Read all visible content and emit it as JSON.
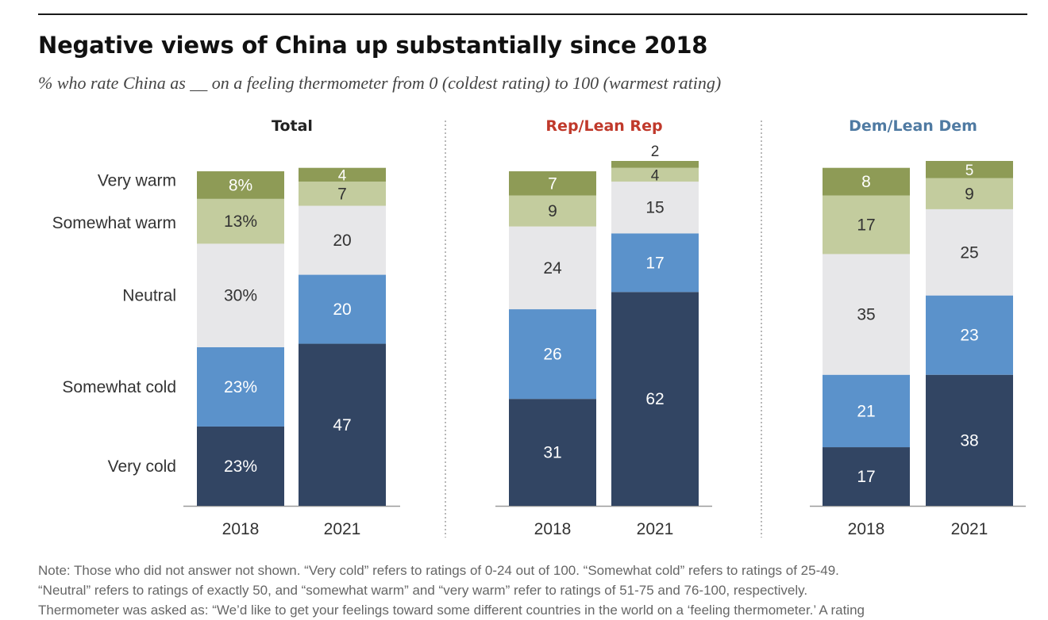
{
  "header": {
    "title": "Negative views of China up substantially since 2018",
    "subtitle": "% who rate China as __ on a feeling thermometer from 0 (coldest rating) to 100 (warmest rating)"
  },
  "note": {
    "line1": "Note: Those who did not answer not shown. “Very cold” refers to ratings of 0-24 out of 100. “Somewhat cold” refers to ratings of 25-49.",
    "line2": "“Neutral” refers to ratings of exactly 50, and “somewhat warm” and “very warm” refer to ratings of 51-75 and 76-100, respectively.",
    "line3": "Thermometer was asked as: “We’d like to get your feelings toward some different countries in the world on a ‘feeling thermometer.’ A rating"
  },
  "colors": {
    "very_cold": "#324563",
    "somewhat_cold": "#5b92cb",
    "neutral": "#e7e7e9",
    "somewhat_warm": "#c3cc9e",
    "very_warm": "#8e9b56",
    "rep_accent": "#c0392b",
    "dem_accent": "#4f7aa2"
  },
  "chart_data": {
    "type": "bar",
    "stacked": true,
    "orientation": "vertical",
    "categories": [
      "2018",
      "2021"
    ],
    "row_labels": [
      "Very warm",
      "Somewhat warm",
      "Neutral",
      "Somewhat cold",
      "Very cold"
    ],
    "groups": [
      {
        "title": "Total",
        "title_color": "#222222",
        "series": [
          {
            "key": "very_cold",
            "values": [
              23,
              47
            ],
            "labels": [
              "23%",
              "47"
            ]
          },
          {
            "key": "somewhat_cold",
            "values": [
              23,
              20
            ],
            "labels": [
              "23%",
              "20"
            ]
          },
          {
            "key": "neutral",
            "values": [
              30,
              20
            ],
            "labels": [
              "30%",
              "20"
            ]
          },
          {
            "key": "somewhat_warm",
            "values": [
              13,
              7
            ],
            "labels": [
              "13%",
              "7"
            ]
          },
          {
            "key": "very_warm",
            "values": [
              8,
              4
            ],
            "labels": [
              "8%",
              "4"
            ]
          }
        ]
      },
      {
        "title": "Rep/Lean Rep",
        "title_color": "#c0392b",
        "series": [
          {
            "key": "very_cold",
            "values": [
              31,
              62
            ],
            "labels": [
              "31",
              "62"
            ]
          },
          {
            "key": "somewhat_cold",
            "values": [
              26,
              17
            ],
            "labels": [
              "26",
              "17"
            ]
          },
          {
            "key": "neutral",
            "values": [
              24,
              15
            ],
            "labels": [
              "24",
              "15"
            ]
          },
          {
            "key": "somewhat_warm",
            "values": [
              9,
              4
            ],
            "labels": [
              "9",
              "4"
            ]
          },
          {
            "key": "very_warm",
            "values": [
              7,
              2
            ],
            "labels": [
              "7",
              "2"
            ]
          }
        ]
      },
      {
        "title": "Dem/Lean Dem",
        "title_color": "#4f7aa2",
        "series": [
          {
            "key": "very_cold",
            "values": [
              17,
              38
            ],
            "labels": [
              "17",
              "38"
            ]
          },
          {
            "key": "somewhat_cold",
            "values": [
              21,
              23
            ],
            "labels": [
              "21",
              "23"
            ]
          },
          {
            "key": "neutral",
            "values": [
              35,
              25
            ],
            "labels": [
              "35",
              "25"
            ]
          },
          {
            "key": "somewhat_warm",
            "values": [
              17,
              9
            ],
            "labels": [
              "17",
              "9"
            ]
          },
          {
            "key": "very_warm",
            "values": [
              8,
              5
            ],
            "labels": [
              "8",
              "5"
            ]
          }
        ]
      }
    ],
    "ylim": [
      0,
      100
    ],
    "grid": false,
    "legend": "left"
  }
}
